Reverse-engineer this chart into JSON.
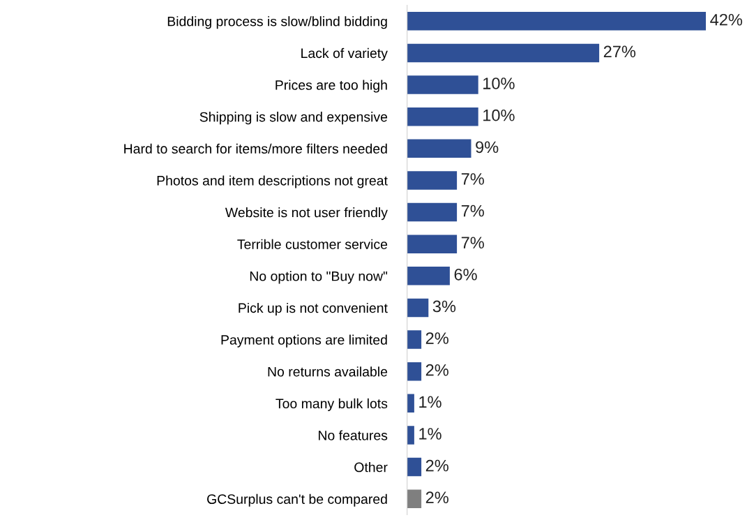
{
  "chart_data": {
    "type": "bar",
    "orientation": "horizontal",
    "categories": [
      "Bidding process is slow/blind bidding",
      "Lack of variety",
      "Prices are too high",
      "Shipping is slow and expensive",
      "Hard to search for items/more filters needed",
      "Photos and item descriptions not great",
      "Website is not user friendly",
      "Terrible customer service",
      "No option to \"Buy now\"",
      "Pick up is not convenient",
      "Payment options are limited",
      "No returns available",
      "Too many bulk lots",
      "No features",
      "Other",
      "GCSurplus can't be compared"
    ],
    "values": [
      42,
      27,
      10,
      10,
      9,
      7,
      7,
      7,
      6,
      3,
      2,
      2,
      1,
      1,
      2,
      2
    ],
    "value_labels": [
      "42%",
      "27%",
      "10%",
      "10%",
      "9%",
      "7%",
      "7%",
      "7%",
      "6%",
      "3%",
      "2%",
      "2%",
      "1%",
      "1%",
      "2%",
      "2%"
    ],
    "colors": [
      "#2f5096",
      "#2f5096",
      "#2f5096",
      "#2f5096",
      "#2f5096",
      "#2f5096",
      "#2f5096",
      "#2f5096",
      "#2f5096",
      "#2f5096",
      "#2f5096",
      "#2f5096",
      "#2f5096",
      "#2f5096",
      "#2f5096",
      "#7f7f7f"
    ],
    "grid": false,
    "legend": false
  }
}
